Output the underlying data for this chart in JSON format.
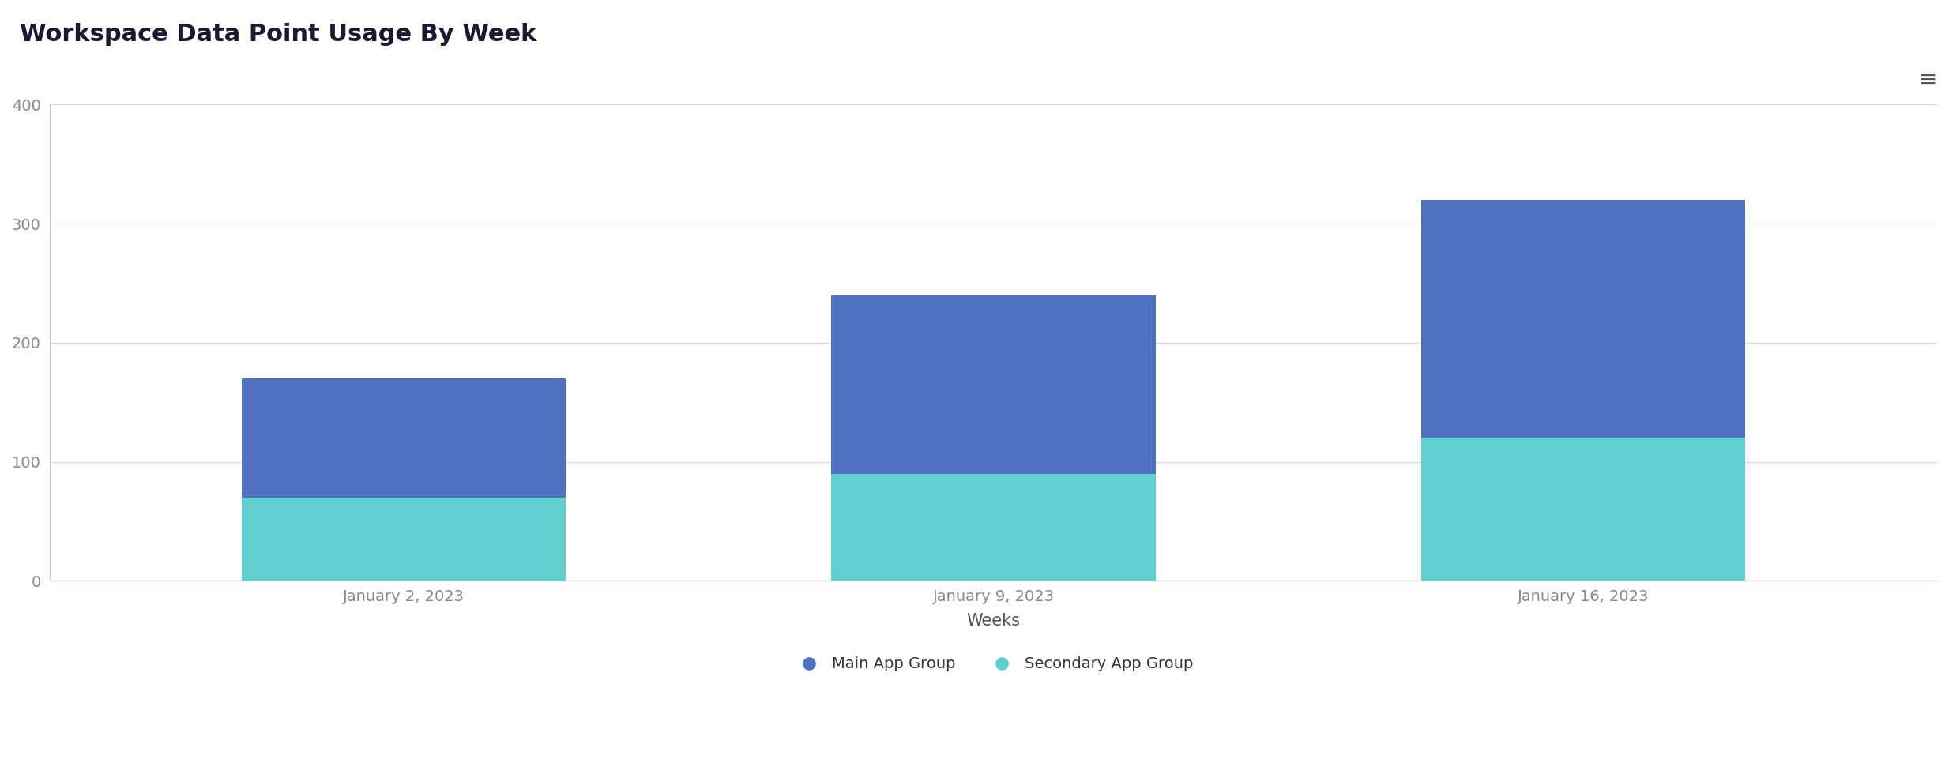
{
  "title": "Workspace Data Point Usage By Week",
  "xlabel": "Weeks",
  "ylabel": "",
  "categories": [
    "January 2, 2023",
    "January 9, 2023",
    "January 16, 2023"
  ],
  "secondary_values": [
    70,
    90,
    120
  ],
  "main_values": [
    100,
    150,
    200
  ],
  "main_color": "#4e72c0",
  "secondary_color": "#5ecfce",
  "ylim": [
    0,
    400
  ],
  "yticks": [
    0,
    100,
    200,
    300,
    400
  ],
  "background_color": "#ffffff",
  "plot_bg_color": "#ffffff",
  "grid_color": "#d9d9d9",
  "title_fontsize": 22,
  "tick_fontsize": 14,
  "xlabel_fontsize": 15,
  "legend_fontsize": 14,
  "legend_labels": [
    "Main App Group",
    "Secondary App Group"
  ],
  "bar_width": 0.55,
  "spine_color": "#cccccc",
  "title_color": "#1a1a2e",
  "tick_color": "#888888",
  "xlabel_color": "#555555",
  "hamburger_color": "#555555"
}
